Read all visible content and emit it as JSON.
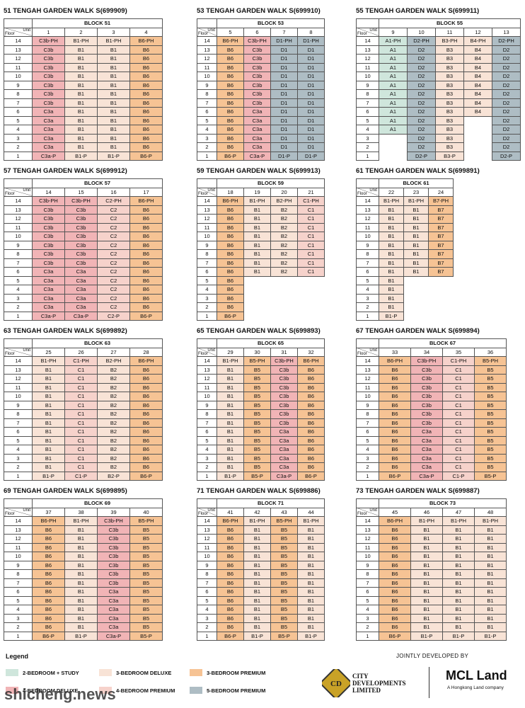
{
  "floor_label": "Floor",
  "unit_label": "Unit",
  "floors": [
    "14",
    "13",
    "12",
    "11",
    "10",
    "9",
    "8",
    "7",
    "6",
    "5",
    "4",
    "3",
    "2",
    "1"
  ],
  "legend": {
    "title": "Legend",
    "items": [
      {
        "name": "2-BEDROOM + STUDY",
        "color": "#cfe6dc"
      },
      {
        "name": "3-BEDROOM DELUXE",
        "color": "#f8e3d6"
      },
      {
        "name": "3-BEDROOM PREMIUM",
        "color": "#f6c394"
      },
      {
        "name": "4-BEDROOM DELUXE",
        "color": "#f1b4b6"
      },
      {
        "name": "4-BEDROOM PREMIUM",
        "color": "#f6d2cb"
      },
      {
        "name": "5-BEDROOM PREMIUM",
        "color": "#aebdc4"
      }
    ]
  },
  "footer": {
    "jointly": "JOINTLY DEVELOPED BY",
    "cdl": "CITY DEVELOPMENTS LIMITED",
    "mcl": "MCL Land",
    "mcl_sub": "A Hongkong Land company"
  },
  "watermark": "shicheng.news",
  "blocks": [
    {
      "title": "51 TENGAH GARDEN WALK S(699909)",
      "block": "BLOCK 51",
      "units": [
        {
          "unit": "1",
          "legend": 3,
          "cells": [
            "C3b-PH",
            "C3b",
            "C3b",
            "C3b",
            "C3b",
            "C3b",
            "C3b",
            "C3b",
            "C3a",
            "C3a",
            "C3a",
            "C3a",
            "C3a",
            "C3a-P"
          ]
        },
        {
          "unit": "2",
          "legend": 1,
          "cells": [
            "B1-PH",
            "B1",
            "B1",
            "B1",
            "B1",
            "B1",
            "B1",
            "B1",
            "B1",
            "B1",
            "B1",
            "B1",
            "B1",
            "B1-P"
          ]
        },
        {
          "unit": "3",
          "legend": 1,
          "cells": [
            "B1-PH",
            "B1",
            "B1",
            "B1",
            "B1",
            "B1",
            "B1",
            "B1",
            "B1",
            "B1",
            "B1",
            "B1",
            "B1",
            "B1-P"
          ]
        },
        {
          "unit": "4",
          "legend": 2,
          "cells": [
            "B6-PH",
            "B6",
            "B6",
            "B6",
            "B6",
            "B6",
            "B6",
            "B6",
            "B6",
            "B6",
            "B6",
            "B6",
            "B6",
            "B6-P"
          ]
        }
      ]
    },
    {
      "title": "53 TENGAH GARDEN WALK S(699910)",
      "block": "BLOCK 53",
      "units": [
        {
          "unit": "5",
          "legend": 2,
          "cells": [
            "B6-PH",
            "B6",
            "B6",
            "B6",
            "B6",
            "B6",
            "B6",
            "B6",
            "B6",
            "B6",
            "B6",
            "B6",
            "B6",
            "B6-P"
          ]
        },
        {
          "unit": "6",
          "legend": 3,
          "cells": [
            "C3b-PH",
            "C3b",
            "C3b",
            "C3b",
            "C3b",
            "C3b",
            "C3b",
            "C3b",
            "C3a",
            "C3a",
            "C3a",
            "C3a",
            "C3a",
            "C3a-P"
          ]
        },
        {
          "unit": "7",
          "legend": 5,
          "cells": [
            "D1-PH",
            "D1",
            "D1",
            "D1",
            "D1",
            "D1",
            "D1",
            "D1",
            "D1",
            "D1",
            "D1",
            "D1",
            "D1",
            "D1-P"
          ]
        },
        {
          "unit": "8",
          "legend": 5,
          "cells": [
            "D1-PH",
            "D1",
            "D1",
            "D1",
            "D1",
            "D1",
            "D1",
            "D1",
            "D1",
            "D1",
            "D1",
            "D1",
            "D1",
            "D1-P"
          ]
        }
      ]
    },
    {
      "title": "55 TENGAH GARDEN WALK S(699911)",
      "block": "BLOCK 55",
      "units": [
        {
          "unit": "9",
          "legend": 0,
          "cells": [
            "A1-PH",
            "A1",
            "A1",
            "A1",
            "A1",
            "A1",
            "A1",
            "A1",
            "A1",
            "A1",
            "A1",
            null,
            null,
            null
          ]
        },
        {
          "unit": "10",
          "legend": 5,
          "cells": [
            "D2-PH",
            "D2",
            "D2",
            "D2",
            "D2",
            "D2",
            "D2",
            "D2",
            "D2",
            "D2",
            "D2",
            "D2",
            "D2",
            "D2-P"
          ]
        },
        {
          "unit": "11",
          "legend": 1,
          "cells": [
            "B3-PH",
            "B3",
            "B3",
            "B3",
            "B3",
            "B3",
            "B3",
            "B3",
            "B3",
            "B3",
            "B3",
            "B3",
            "B3",
            "B3-P"
          ]
        },
        {
          "unit": "12",
          "legend": 1,
          "cells": [
            "B4-PH",
            "B4",
            "B4",
            "B4",
            "B4",
            "B4",
            "B4",
            "B4",
            "B4",
            null,
            null,
            null,
            null,
            null
          ]
        },
        {
          "unit": "13",
          "legend": 5,
          "cells": [
            "D2-PH",
            "D2",
            "D2",
            "D2",
            "D2",
            "D2",
            "D2",
            "D2",
            "D2",
            "D2",
            "D2",
            "D2",
            "D2",
            "D2-P"
          ]
        }
      ]
    },
    {
      "title": "57 TENGAH GARDEN WALK S(699912)",
      "block": "BLOCK 57",
      "units": [
        {
          "unit": "14",
          "legend": 3,
          "cells": [
            "C3b-PH",
            "C3b",
            "C3b",
            "C3b",
            "C3b",
            "C3b",
            "C3b",
            "C3b",
            "C3a",
            "C3a",
            "C3a",
            "C3a",
            "C3a",
            "C3a-P"
          ]
        },
        {
          "unit": "15",
          "legend": 3,
          "cells": [
            "C3b-PH",
            "C3b",
            "C3b",
            "C3b",
            "C3b",
            "C3b",
            "C3b",
            "C3b",
            "C3a",
            "C3a",
            "C3a",
            "C3a",
            "C3a",
            "C3a-P"
          ]
        },
        {
          "unit": "16",
          "legend": 4,
          "cells": [
            "C2-PH",
            "C2",
            "C2",
            "C2",
            "C2",
            "C2",
            "C2",
            "C2",
            "C2",
            "C2",
            "C2",
            "C2",
            "C2",
            "C2-P"
          ]
        },
        {
          "unit": "17",
          "legend": 2,
          "cells": [
            "B6-PH",
            "B6",
            "B6",
            "B6",
            "B6",
            "B6",
            "B6",
            "B6",
            "B6",
            "B6",
            "B6",
            "B6",
            "B6",
            "B6-P"
          ]
        }
      ]
    },
    {
      "title": "59 TENGAH GARDEN WALK S(699913)",
      "block": "BLOCK 59",
      "units": [
        {
          "unit": "18",
          "legend": 2,
          "cells": [
            "B6-PH",
            "B6",
            "B6",
            "B6",
            "B6",
            "B6",
            "B6",
            "B6",
            "B6",
            "B6",
            "B6",
            "B6",
            "B6",
            "B6-P"
          ]
        },
        {
          "unit": "19",
          "legend": 1,
          "cells": [
            "B1-PH",
            "B1",
            "B1",
            "B1",
            "B1",
            "B1",
            "B1",
            "B1",
            "B1",
            null,
            null,
            null,
            null,
            null
          ]
        },
        {
          "unit": "20",
          "legend": 1,
          "cells": [
            "B2-PH",
            "B2",
            "B2",
            "B2",
            "B2",
            "B2",
            "B2",
            "B2",
            "B2",
            null,
            null,
            null,
            null,
            null
          ]
        },
        {
          "unit": "21",
          "legend": 4,
          "cells": [
            "C1-PH",
            "C1",
            "C1",
            "C1",
            "C1",
            "C1",
            "C1",
            "C1",
            "C1",
            null,
            null,
            null,
            null,
            null
          ]
        }
      ]
    },
    {
      "title": "61 TENGAH GARDEN WALK S(699891)",
      "block": "BLOCK 61",
      "units": [
        {
          "unit": "22",
          "legend": 1,
          "cells": [
            "B1-PH",
            "B1",
            "B1",
            "B1",
            "B1",
            "B1",
            "B1",
            "B1",
            "B1",
            "B1",
            "B1",
            "B1",
            "B1",
            "B1-P"
          ]
        },
        {
          "unit": "23",
          "legend": 1,
          "cells": [
            "B1-PH",
            "B1",
            "B1",
            "B1",
            "B1",
            "B1",
            "B1",
            "B1",
            "B1",
            null,
            null,
            null,
            null,
            null
          ]
        },
        {
          "unit": "24",
          "legend": 2,
          "cells": [
            "B7-PH",
            "B7",
            "B7",
            "B7",
            "B7",
            "B7",
            "B7",
            "B7",
            "B7",
            null,
            null,
            null,
            null,
            null
          ]
        }
      ]
    },
    {
      "title": "63 TENGAH GARDEN WALK S(699892)",
      "block": "BLOCK 63",
      "units": [
        {
          "unit": "25",
          "legend": 1,
          "cells": [
            "B1-PH",
            "B1",
            "B1",
            "B1",
            "B1",
            "B1",
            "B1",
            "B1",
            "B1",
            "B1",
            "B1",
            "B1",
            "B1",
            "B1-P"
          ]
        },
        {
          "unit": "26",
          "legend": 4,
          "cells": [
            "C1-PH",
            "C1",
            "C1",
            "C1",
            "C1",
            "C1",
            "C1",
            "C1",
            "C1",
            "C1",
            "C1",
            "C1",
            "C1",
            "C1-P"
          ]
        },
        {
          "unit": "27",
          "legend": 1,
          "cells": [
            "B2-PH",
            "B2",
            "B2",
            "B2",
            "B2",
            "B2",
            "B2",
            "B2",
            "B2",
            "B2",
            "B2",
            "B2",
            "B2",
            "B2-P"
          ]
        },
        {
          "unit": "28",
          "legend": 2,
          "cells": [
            "B6-PH",
            "B6",
            "B6",
            "B6",
            "B6",
            "B6",
            "B6",
            "B6",
            "B6",
            "B6",
            "B6",
            "B6",
            "B6",
            "B6-P"
          ]
        }
      ]
    },
    {
      "title": "65 TENGAH GARDEN WALK S(699893)",
      "block": "BLOCK 65",
      "units": [
        {
          "unit": "29",
          "legend": 1,
          "cells": [
            "B1-PH",
            "B1",
            "B1",
            "B1",
            "B1",
            "B1",
            "B1",
            "B1",
            "B1",
            "B1",
            "B1",
            "B1",
            "B1",
            "B1-P"
          ]
        },
        {
          "unit": "30",
          "legend": 2,
          "cells": [
            "B5-PH",
            "B5",
            "B5",
            "B5",
            "B5",
            "B5",
            "B5",
            "B5",
            "B5",
            "B5",
            "B5",
            "B5",
            "B5",
            "B5-P"
          ]
        },
        {
          "unit": "31",
          "legend": 3,
          "cells": [
            "C3b-PH",
            "C3b",
            "C3b",
            "C3b",
            "C3b",
            "C3b",
            "C3b",
            "C3b",
            "C3a",
            "C3a",
            "C3a",
            "C3a",
            "C3a",
            "C3a-P"
          ]
        },
        {
          "unit": "32",
          "legend": 2,
          "cells": [
            "B6-PH",
            "B6",
            "B6",
            "B6",
            "B6",
            "B6",
            "B6",
            "B6",
            "B6",
            "B6",
            "B6",
            "B6",
            "B6",
            "B6-P"
          ]
        }
      ]
    },
    {
      "title": "67 TENGAH GARDEN WALK S(699894)",
      "block": "BLOCK 67",
      "units": [
        {
          "unit": "33",
          "legend": 2,
          "cells": [
            "B6-PH",
            "B6",
            "B6",
            "B6",
            "B6",
            "B6",
            "B6",
            "B6",
            "B6",
            "B6",
            "B6",
            "B6",
            "B6",
            "B6-P"
          ]
        },
        {
          "unit": "34",
          "legend": 3,
          "cells": [
            "C3b-PH",
            "C3b",
            "C3b",
            "C3b",
            "C3b",
            "C3b",
            "C3b",
            "C3b",
            "C3a",
            "C3a",
            "C3a",
            "C3a",
            "C3a",
            "C3a-P"
          ]
        },
        {
          "unit": "35",
          "legend": 4,
          "cells": [
            "C1-PH",
            "C1",
            "C1",
            "C1",
            "C1",
            "C1",
            "C1",
            "C1",
            "C1",
            "C1",
            "C1",
            "C1",
            "C1",
            "C1-P"
          ]
        },
        {
          "unit": "36",
          "legend": 2,
          "cells": [
            "B5-PH",
            "B5",
            "B5",
            "B5",
            "B5",
            "B5",
            "B5",
            "B5",
            "B5",
            "B5",
            "B5",
            "B5",
            "B5",
            "B5-P"
          ]
        }
      ]
    },
    {
      "title": "69 TENGAH GARDEN WALK S(699895)",
      "block": "BLOCK 69",
      "units": [
        {
          "unit": "37",
          "legend": 2,
          "cells": [
            "B6-PH",
            "B6",
            "B6",
            "B6",
            "B6",
            "B6",
            "B6",
            "B6",
            "B6",
            "B6",
            "B6",
            "B6",
            "B6",
            "B6-P"
          ]
        },
        {
          "unit": "38",
          "legend": 1,
          "cells": [
            "B1-PH",
            "B1",
            "B1",
            "B1",
            "B1",
            "B1",
            "B1",
            "B1",
            "B1",
            "B1",
            "B1",
            "B1",
            "B1",
            "B1-P"
          ]
        },
        {
          "unit": "39",
          "legend": 3,
          "cells": [
            "C3b-PH",
            "C3b",
            "C3b",
            "C3b",
            "C3b",
            "C3b",
            "C3b",
            "C3b",
            "C3a",
            "C3a",
            "C3a",
            "C3a",
            "C3a",
            "C3a-P"
          ]
        },
        {
          "unit": "40",
          "legend": 2,
          "cells": [
            "B5-PH",
            "B5",
            "B5",
            "B5",
            "B5",
            "B5",
            "B5",
            "B5",
            "B5",
            "B5",
            "B5",
            "B5",
            "B5",
            "B5-P"
          ]
        }
      ]
    },
    {
      "title": "71 TENGAH GARDEN WALK S(699886)",
      "block": "BLOCK 71",
      "units": [
        {
          "unit": "41",
          "legend": 2,
          "cells": [
            "B6-PH",
            "B6",
            "B6",
            "B6",
            "B6",
            "B6",
            "B6",
            "B6",
            "B6",
            "B6",
            "B6",
            "B6",
            "B6",
            "B6-P"
          ]
        },
        {
          "unit": "42",
          "legend": 1,
          "cells": [
            "B1-PH",
            "B1",
            "B1",
            "B1",
            "B1",
            "B1",
            "B1",
            "B1",
            "B1",
            "B1",
            "B1",
            "B1",
            "B1",
            "B1-P"
          ]
        },
        {
          "unit": "43",
          "legend": 2,
          "cells": [
            "B5-PH",
            "B5",
            "B5",
            "B5",
            "B5",
            "B5",
            "B5",
            "B5",
            "B5",
            "B5",
            "B5",
            "B5",
            "B5",
            "B5-P"
          ]
        },
        {
          "unit": "44",
          "legend": 1,
          "cells": [
            "B1-PH",
            "B1",
            "B1",
            "B1",
            "B1",
            "B1",
            "B1",
            "B1",
            "B1",
            "B1",
            "B1",
            "B1",
            "B1",
            "B1-P"
          ]
        }
      ]
    },
    {
      "title": "73 TENGAH GARDEN WALK S(699887)",
      "block": "BLOCK 73",
      "units": [
        {
          "unit": "45",
          "legend": 2,
          "cells": [
            "B6-PH",
            "B6",
            "B6",
            "B6",
            "B6",
            "B6",
            "B6",
            "B6",
            "B6",
            "B6",
            "B6",
            "B6",
            "B6",
            "B6-P"
          ]
        },
        {
          "unit": "46",
          "legend": 1,
          "cells": [
            "B1-PH",
            "B1",
            "B1",
            "B1",
            "B1",
            "B1",
            "B1",
            "B1",
            "B1",
            "B1",
            "B1",
            "B1",
            "B1",
            "B1-P"
          ]
        },
        {
          "unit": "47",
          "legend": 1,
          "cells": [
            "B1-PH",
            "B1",
            "B1",
            "B1",
            "B1",
            "B1",
            "B1",
            "B1",
            "B1",
            "B1",
            "B1",
            "B1",
            "B1",
            "B1-P"
          ]
        },
        {
          "unit": "48",
          "legend": 1,
          "cells": [
            "B1-PH",
            "B1",
            "B1",
            "B1",
            "B1",
            "B1",
            "B1",
            "B1",
            "B1",
            "B1",
            "B1",
            "B1",
            "B1",
            "B1-P"
          ]
        }
      ]
    }
  ]
}
